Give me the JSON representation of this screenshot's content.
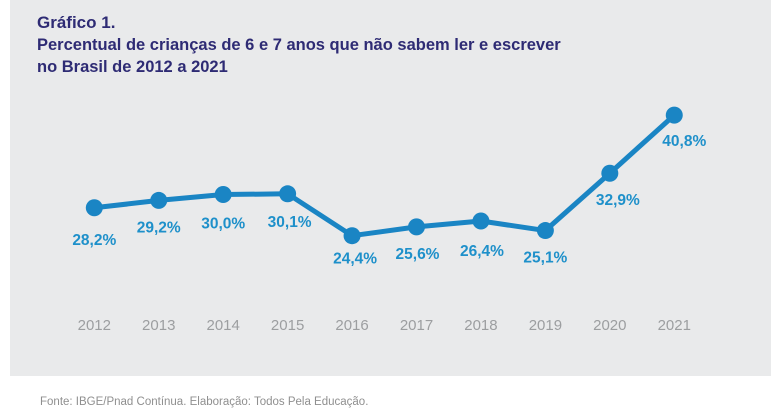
{
  "title": "Gráfico 1.",
  "subtitle_lines": {
    "line1": "Percentual de crianças de 6 e 7 anos que não sabem ler e escrever",
    "line2": "no Brasil de 2012 a 2021"
  },
  "source": "Fonte: IBGE/Pnad Contínua. Elaboração: Todos Pela Educação.",
  "colors": {
    "page_background": "#ffffff",
    "panel_background": "#e9eaeb",
    "line": "#1a85c4",
    "point": "#1a85c4",
    "value_label": "#1e90ca",
    "year_label": "#9c9ea0",
    "title_text": "#2e2b74",
    "source_text": "#8f8f8f"
  },
  "chart_data": {
    "type": "line",
    "title": "Gráfico 1. Percentual de crianças de 6 e 7 anos que não sabem ler e escrever no Brasil de 2012 a 2021",
    "categories": [
      "2012",
      "2013",
      "2014",
      "2015",
      "2016",
      "2017",
      "2018",
      "2019",
      "2020",
      "2021"
    ],
    "series": [
      {
        "name": "Percentual de crianças de 6 e 7 anos que não sabem ler e escrever",
        "values": [
          28.2,
          29.2,
          30.0,
          30.1,
          24.4,
          25.6,
          26.4,
          25.1,
          32.9,
          40.8
        ],
        "value_labels": [
          "28,2%",
          "29,2%",
          "30,0%",
          "30,1%",
          "24,4%",
          "25,6%",
          "26,4%",
          "25,1%",
          "32,9%",
          "40,8%"
        ]
      }
    ],
    "xlabel": "",
    "ylabel": "",
    "ylim": [
      20,
      45
    ],
    "grid": false,
    "axes_visible": false,
    "legend": "none",
    "marker": "circle",
    "data_labels_visible": true
  }
}
